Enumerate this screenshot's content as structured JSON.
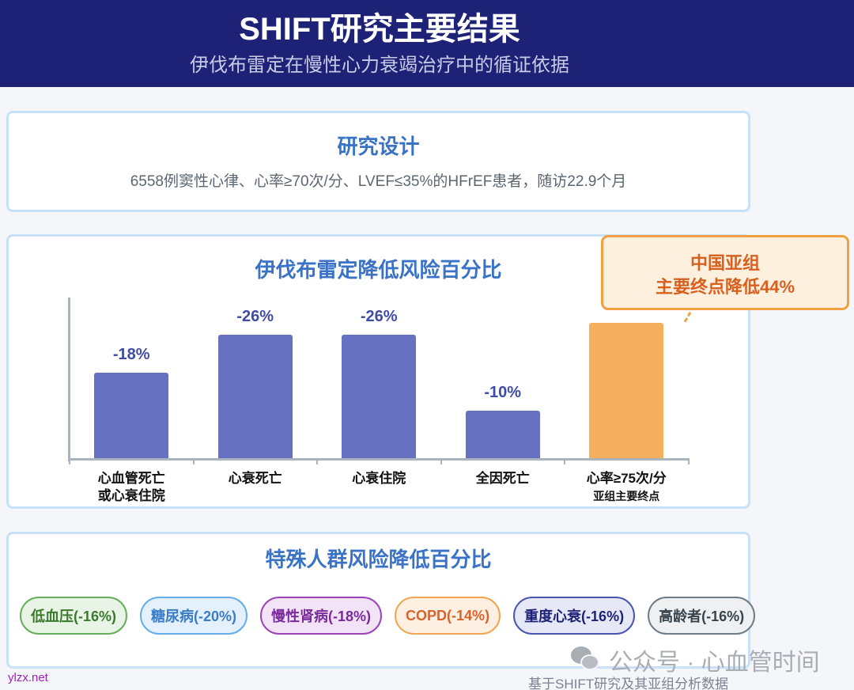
{
  "header": {
    "title": "SHIFT研究主要结果",
    "subtitle": "伊伐布雷定在慢性心力衰竭治疗中的循证依据"
  },
  "design": {
    "title": "研究设计",
    "description": "6558例窦性心律、心率≥70次/分、LVEF≤35%的HFrEF患者，随访22.9个月"
  },
  "chart_section": {
    "title": "伊伐布雷定降低风险百分比",
    "callout_line1": "中国亚组",
    "callout_line2": "主要终点降低44%"
  },
  "chart_data": {
    "type": "bar",
    "title": "伊伐布雷定降低风险百分比",
    "categories": [
      "心血管死亡或心衰住院",
      "心衰死亡",
      "心衰住院",
      "全因死亡",
      "心率≥75次/分 亚组主要终点"
    ],
    "category_lines": [
      [
        "心血管死亡",
        "或心衰住院"
      ],
      [
        "心衰死亡",
        ""
      ],
      [
        "心衰住院",
        ""
      ],
      [
        "全因死亡",
        ""
      ],
      [
        "心率≥75次/分",
        "亚组主要终点"
      ]
    ],
    "values": [
      -18,
      -26,
      -26,
      -10,
      null
    ],
    "value_labels": [
      "-18%",
      "-26%",
      "-26%",
      "-10%",
      ""
    ],
    "bar_colors": [
      "#6672c1",
      "#6672c1",
      "#6672c1",
      "#6672c1",
      "#f4b05e"
    ],
    "annotation": "中国亚组 主要终点降低44%",
    "xlabel": "",
    "ylabel": "",
    "grid": false
  },
  "groups": {
    "title": "特殊人群风险降低百分比",
    "items": [
      {
        "label": "低血压(-16%)",
        "color": "#3b7a2d",
        "bg": "#e8f4e5",
        "border": "#67ae5c"
      },
      {
        "label": "糖尿病(-20%)",
        "color": "#3a7cc8",
        "bg": "#e4f1fc",
        "border": "#64aeea"
      },
      {
        "label": "慢性肾病(-18%)",
        "color": "#7a2a9c",
        "bg": "#f2e4f6",
        "border": "#9a44b8"
      },
      {
        "label": "COPD(-14%)",
        "color": "#d9622a",
        "bg": "#fdf0e2",
        "border": "#f0a64e"
      },
      {
        "label": "重度心衰(-16%)",
        "color": "#1e2277",
        "bg": "#e6e8f6",
        "border": "#4a55b0"
      },
      {
        "label": "高龄者(-16%)",
        "color": "#38434c",
        "bg": "#eef0f1",
        "border": "#6d7c86"
      }
    ]
  },
  "watermark": "公众号 · 心血管时间",
  "footer": "基于SHIFT研究及其亚组分析数据",
  "site": "ylzx.net"
}
